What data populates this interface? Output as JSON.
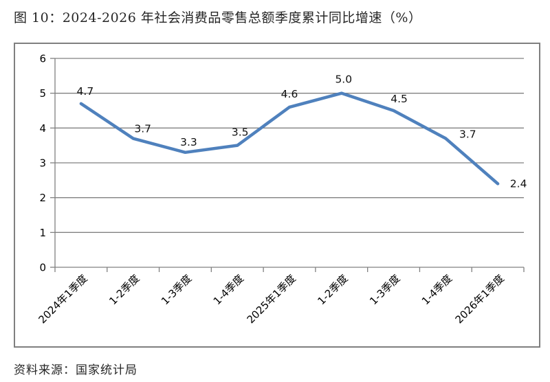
{
  "title": "图 10：2024-2026 年社会消费品零售总额季度累计同比增速（%）",
  "source": "资料来源：国家统计局",
  "colors": {
    "line": "#4F81BD",
    "grid": "#808080",
    "axis_text": "#000000",
    "title_text": "#262626"
  },
  "chart_data": {
    "type": "line",
    "title": "",
    "xlabel": "",
    "ylabel": "",
    "categories": [
      "2024年1季度",
      "1-2季度",
      "1-3季度",
      "1-4季度",
      "2025年1季度",
      "1-2季度",
      "1-3季度",
      "1-4季度",
      "2026年1季度"
    ],
    "values": [
      4.7,
      3.7,
      3.3,
      3.5,
      4.6,
      5.0,
      4.5,
      3.7,
      2.4
    ],
    "value_labels": [
      "4.7",
      "3.7",
      "3.3",
      "3.5",
      "4.6",
      "5.0",
      "4.5",
      "3.7",
      "2.4"
    ],
    "ylim": [
      0,
      6
    ],
    "yticks": [
      "6",
      "5",
      "4",
      "3",
      "2",
      "1",
      "0"
    ],
    "grid": "horizontal",
    "legend_position": "none"
  }
}
